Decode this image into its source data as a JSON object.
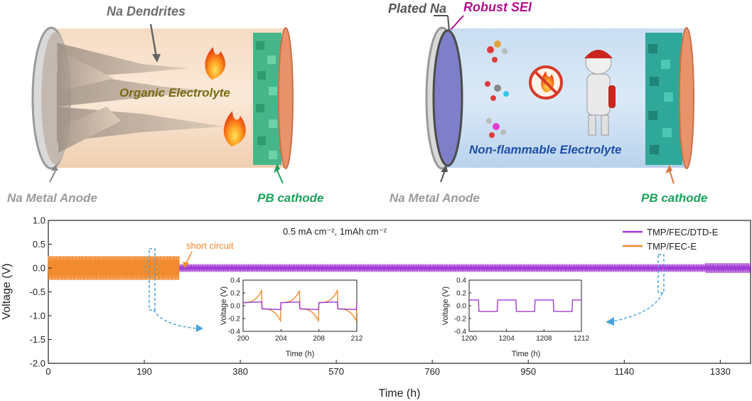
{
  "schematics": {
    "left": {
      "dendrites_label": "Na Dendrites",
      "electrolyte_label": "Organic Electrolyte",
      "anode_label": "Na Metal Anode",
      "cathode_label": "PB cathode"
    },
    "right": {
      "plated_label": "Plated Na",
      "sei_label": "Robust SEI",
      "electrolyte_label": "Non-flammable Electrolyte",
      "anode_label": "Na Metal Anode",
      "cathode_label": "PB cathode"
    },
    "colors": {
      "sei_magenta": "#b0138f",
      "cathode_green": "#1aa25a",
      "anode_gray": "#9a9a9a",
      "organic_text": "#7a6a12",
      "nonflam_text": "#1f4fa8"
    }
  },
  "chart_data": [
    {
      "type": "line",
      "title": "",
      "condition_note": "0.5 mA cm⁻², 1mAh cm⁻²",
      "annotation": "short circuit",
      "xlabel": "Time (h)",
      "ylabel": "Voltage (V)",
      "xlim": [
        0,
        1390
      ],
      "ylim": [
        -2.0,
        1.0
      ],
      "xticks": [
        "0",
        "190",
        "380",
        "570",
        "760",
        "950",
        "1140",
        "1330"
      ],
      "xtick_values": [
        0,
        190,
        380,
        570,
        760,
        950,
        1140,
        1330
      ],
      "yticks": [
        "1.0",
        "0.5",
        "0.0",
        "-0.5",
        "-1.0",
        "-1.5",
        "-2.0"
      ],
      "ytick_values": [
        1.0,
        0.5,
        0.0,
        -0.5,
        -1.0,
        -1.5,
        -2.0
      ],
      "legend_position": "top-right",
      "series": [
        {
          "name": "TMP/FEC/DTD-E",
          "color": "#a23ad6",
          "time_range": [
            0,
            1390
          ],
          "amplitude_v": 0.08
        },
        {
          "name": "TMP/FEC-E",
          "color": "#f28a2e",
          "time_range": [
            0,
            260
          ],
          "amplitude_v": 0.25,
          "short_circuit_at": 260
        }
      ]
    },
    {
      "type": "line",
      "title": "",
      "xlabel": "Time (h)",
      "ylabel": "Voltage (V)",
      "xlim": [
        200,
        212
      ],
      "ylim": [
        -0.4,
        0.4
      ],
      "xticks": [
        "200",
        "204",
        "208",
        "212"
      ],
      "xtick_values": [
        200,
        204,
        208,
        212
      ],
      "yticks": [
        "0.4",
        "0.2",
        "0.0",
        "-0.2",
        "-0.4"
      ],
      "ytick_values": [
        0.4,
        0.2,
        0.0,
        -0.2,
        -0.4
      ],
      "series": [
        {
          "name": "TMP/FEC/DTD-E",
          "color": "#a23ad6",
          "plateau_v": 0.06
        },
        {
          "name": "TMP/FEC-E",
          "color": "#f28a2e",
          "peak_v": 0.25
        }
      ]
    },
    {
      "type": "line",
      "title": "",
      "xlabel": "Time (h)",
      "ylabel": "Voltage (V)",
      "xlim": [
        1200,
        1212
      ],
      "ylim": [
        -0.4,
        0.4
      ],
      "xticks": [
        "1200",
        "1204",
        "1208",
        "1212"
      ],
      "xtick_values": [
        1200,
        1204,
        1208,
        1212
      ],
      "yticks": [
        "0.4",
        "0.2",
        "0.0",
        "-0.2",
        "-0.4"
      ],
      "ytick_values": [
        0.4,
        0.2,
        0.0,
        -0.2,
        -0.4
      ],
      "series": [
        {
          "name": "TMP/FEC/DTD-E",
          "color": "#a23ad6",
          "plateau_v": 0.09
        }
      ]
    }
  ]
}
